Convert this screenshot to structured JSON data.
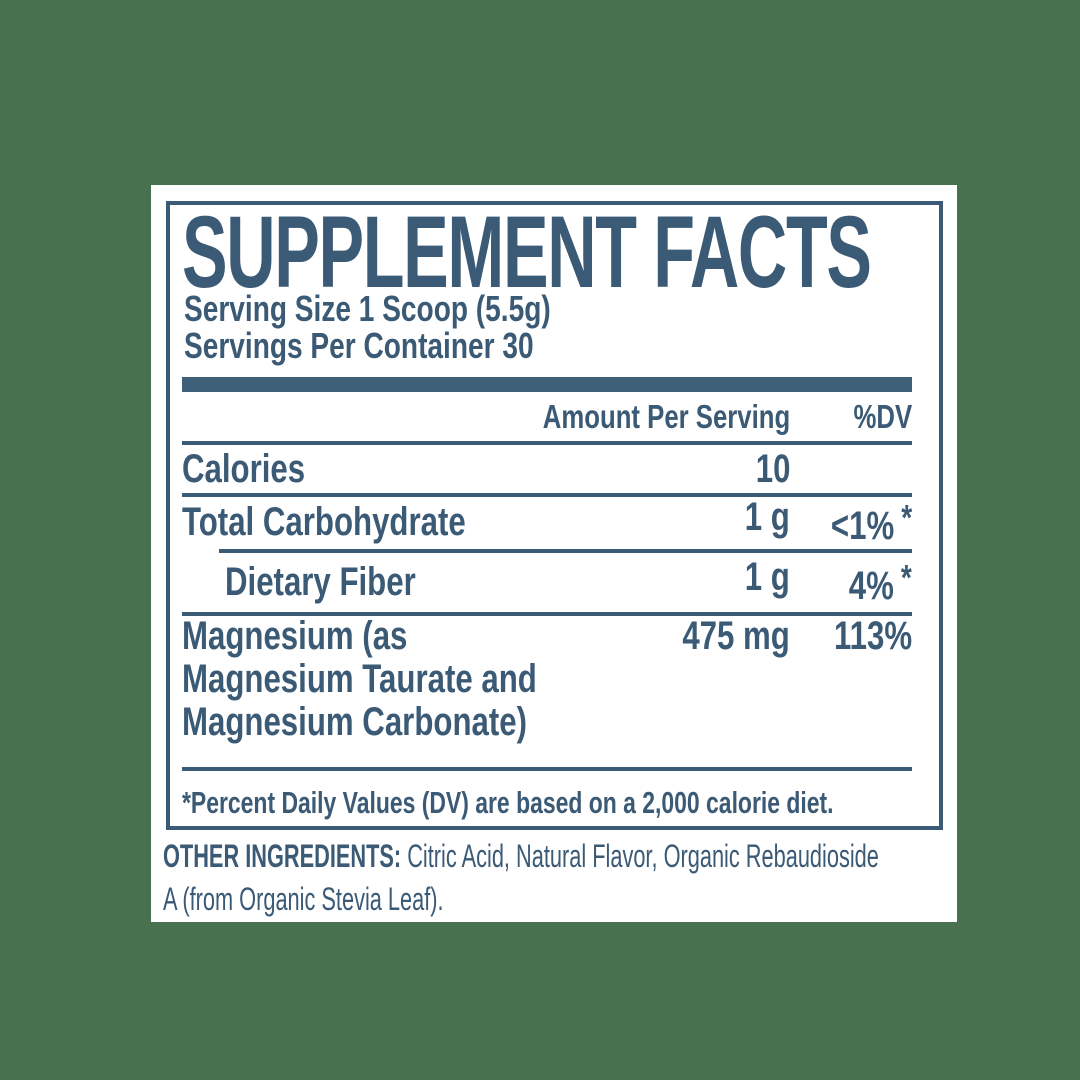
{
  "label": {
    "title": "SUPPLEMENT FACTS",
    "serving_size": "Serving Size 1 Scoop (5.5g)",
    "servings_per_container": "Servings Per Container 30",
    "columns": {
      "amount": "Amount Per Serving",
      "dv": "%DV"
    },
    "rows": [
      {
        "name": "Calories",
        "amount": "10",
        "dv": ""
      },
      {
        "name": "Total Carbohydrate",
        "amount": "1 g",
        "dv": "<1%",
        "dv_mark": "*"
      },
      {
        "name": "Dietary Fiber",
        "amount": "1 g",
        "dv": "4%",
        "dv_mark": "*"
      },
      {
        "name_lines": [
          "Magnesium (as",
          "Magnesium Taurate and",
          "Magnesium Carbonate)"
        ],
        "amount": "475 mg",
        "dv": "113%"
      }
    ],
    "footnote": "*Percent Daily Values (DV) are based on a 2,000 calorie diet.",
    "other_ingredients": {
      "lead": "OTHER INGREDIENTS:",
      "line1": " Citric Acid, Natural Flavor, Organic Rebaudioside",
      "line2": "A (from Organic Stevia Leaf)."
    },
    "colors": {
      "background": "#47714F",
      "panel": "#FFFFFF",
      "ink": "#3B5A75",
      "bar": "#3E6079"
    }
  }
}
